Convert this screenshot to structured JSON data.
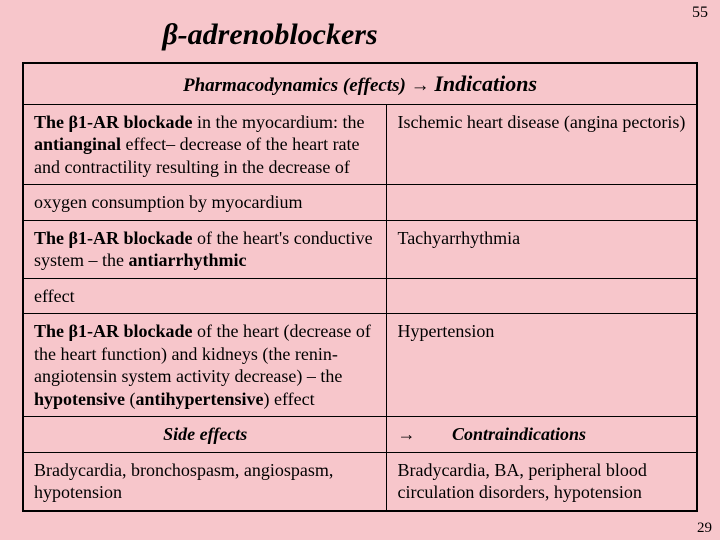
{
  "page_number_top": "55",
  "page_number_bottom": "29",
  "title": "β-adrenoblockers",
  "header": {
    "left": "Pharmacodynamics (effects)",
    "arrow": "→",
    "right": "Indications"
  },
  "rows": [
    {
      "left_html": "<b>The β1-AR blockade</b> in the myocardium: the <b>antianginal</b> effect– decrease of the heart rate and contractility resulting in the decrease of",
      "right": "Ischemic heart disease (angina pectoris)"
    },
    {
      "left": "oxygen consumption by myocardium",
      "right": ""
    },
    {
      "left_html": "<b>The β1-AR blockade</b> of the heart's conductive system – the <b>antiarrhythmic</b>",
      "right": "Tachyarrhythmia"
    },
    {
      "left": "effect",
      "right": ""
    },
    {
      "left_html": "<b>The β1-AR blockade</b> of the heart (decrease of the heart function) and kidneys (the renin-angiotensin system activity decrease) – the <b>hypotensive</b> (<b>antihypertensive</b>) effect",
      "right": "Hypertension"
    }
  ],
  "footer_header": {
    "left": "Side effects",
    "arrow": "→",
    "right": "Contraindications"
  },
  "footer_row": {
    "left": "Bradycardia, bronchospasm, angiospasm, hypotension",
    "right": "Bradycardia, BA, peripheral blood circulation disorders, hypotension"
  },
  "colors": {
    "background": "#f7c6cb",
    "border": "#000000",
    "text": "#000000"
  }
}
